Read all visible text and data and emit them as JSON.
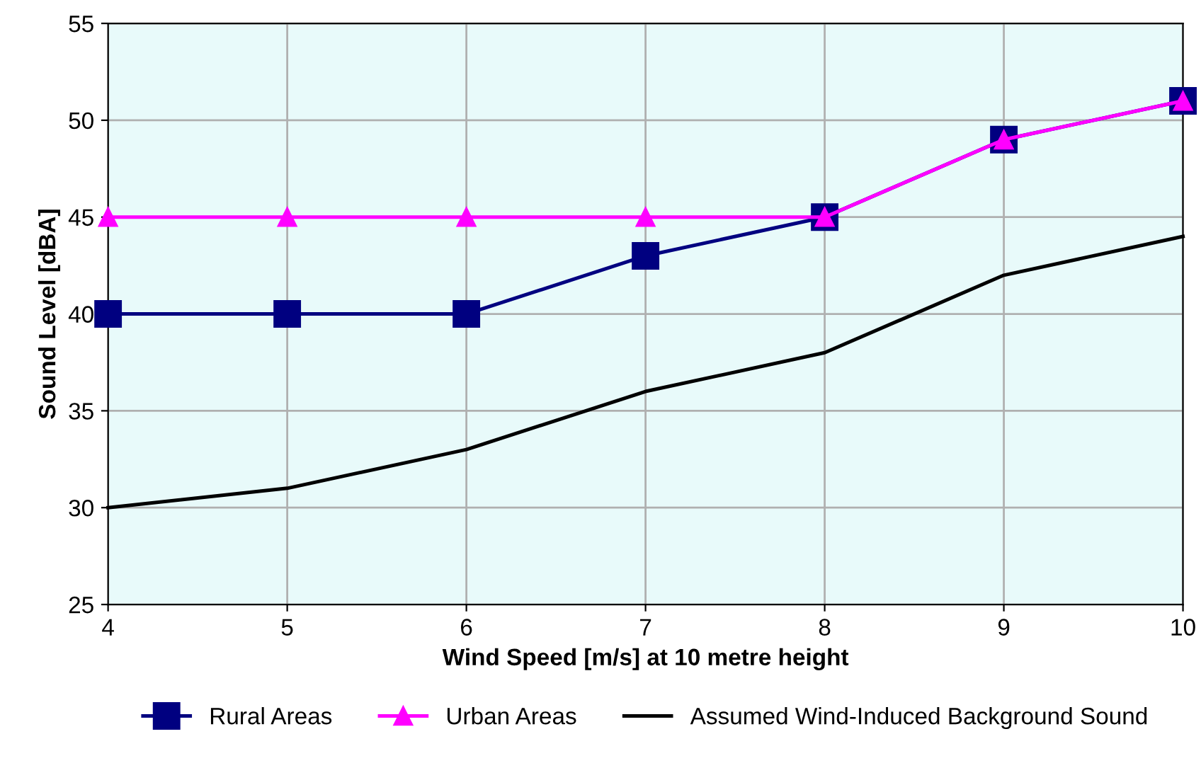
{
  "chart_data": {
    "type": "line",
    "xlabel": "Wind Speed [m/s] at 10 metre height",
    "ylabel": "Sound Level [dBA]",
    "x": [
      4,
      5,
      6,
      7,
      8,
      9,
      10
    ],
    "series": [
      {
        "name": "Rural Areas",
        "color": "#000080",
        "marker": "square",
        "values": [
          40,
          40,
          40,
          43,
          45,
          49,
          51
        ]
      },
      {
        "name": "Urban Areas",
        "color": "#ff00ff",
        "marker": "triangle",
        "values": [
          45,
          45,
          45,
          45,
          45,
          49,
          51
        ]
      },
      {
        "name": "Assumed Wind-Induced Background Sound",
        "color": "#000000",
        "marker": "none",
        "values": [
          30,
          31,
          33,
          36,
          38,
          42,
          44
        ]
      }
    ],
    "xlim": [
      4,
      10
    ],
    "xticks": [
      4,
      5,
      6,
      7,
      8,
      9,
      10
    ],
    "ylim": [
      25,
      55
    ],
    "yticks": [
      25,
      30,
      35,
      40,
      45,
      50,
      55
    ],
    "grid": true,
    "legend": "bottom"
  }
}
